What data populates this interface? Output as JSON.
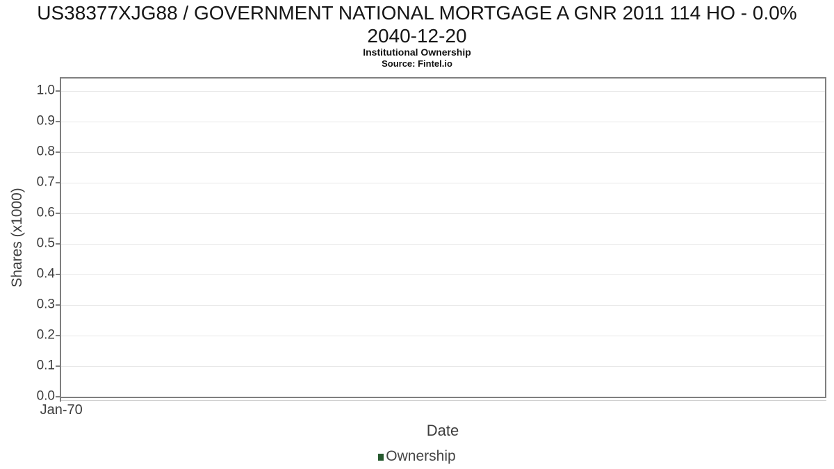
{
  "header": {
    "title_line1": "US38377XJG88 / GOVERNMENT NATIONAL MORTGAGE A GNR 2011 114 HO - 0.0%",
    "title_line2": "2040-12-20",
    "subtitle": "Institutional Ownership",
    "source": "Source: Fintel.io"
  },
  "chart_data": {
    "type": "line",
    "title": "US38377XJG88 / GOVERNMENT NATIONAL MORTGAGE A GNR 2011 114 HO - 0.0% 2040-12-20",
    "subtitle": "Institutional Ownership",
    "source": "Source: Fintel.io",
    "xlabel": "Date",
    "ylabel": "Shares (x1000)",
    "x_tick_labels": [
      "Jan-70"
    ],
    "y_tick_labels": [
      "0.0",
      "0.1",
      "0.2",
      "0.3",
      "0.4",
      "0.5",
      "0.6",
      "0.7",
      "0.8",
      "0.9",
      "1.0"
    ],
    "y_ticks": [
      0.0,
      0.1,
      0.2,
      0.3,
      0.4,
      0.5,
      0.6,
      0.7,
      0.8,
      0.9,
      1.0
    ],
    "ylim": [
      0,
      1.042
    ],
    "grid": true,
    "legend_position": "bottom-center",
    "legend": [
      {
        "label": "Ownership",
        "color": "#26592f"
      }
    ],
    "series": [
      {
        "name": "Ownership",
        "x": [],
        "y": []
      }
    ],
    "colors": {
      "axis": "#7f7f7f",
      "gridline": "#e8e8e8",
      "text": "#3d3d3d",
      "title": "#161616"
    }
  }
}
